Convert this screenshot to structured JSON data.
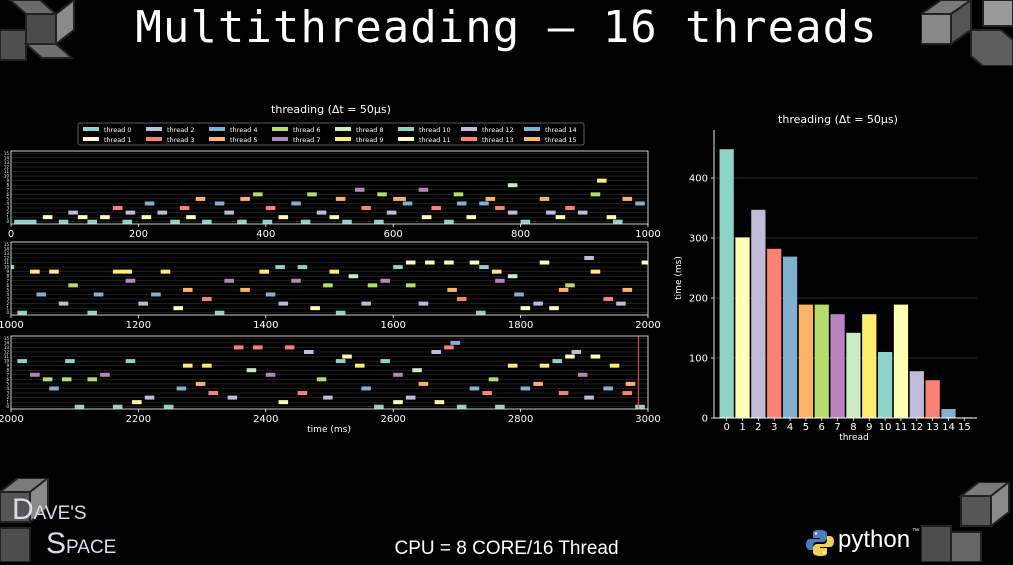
{
  "slide": {
    "title": "Multithreading – 16 threads",
    "footer": "CPU = 8 CORE/16 Thread",
    "logo_left": {
      "line1_big": "D",
      "line1_small": "AVE'S",
      "line2_big": "S",
      "line2_small": "PACE"
    },
    "logo_right": "python",
    "logo_right_mark": "™",
    "background": "#000000"
  },
  "chart_data": [
    {
      "type": "timeline",
      "title": "threading (Δt = 50μs)",
      "xlabel": "time (ms)",
      "panels": [
        {
          "xlim": [
            0,
            1000
          ],
          "xticks": [
            0,
            200,
            400,
            600,
            800,
            1000
          ]
        },
        {
          "xlim": [
            1000,
            2000
          ],
          "xticks": [
            1000,
            1200,
            1400,
            1600,
            1800,
            2000
          ]
        },
        {
          "xlim": [
            2000,
            3000
          ],
          "xticks": [
            2000,
            2200,
            2400,
            2600,
            2800,
            3000
          ],
          "marker_x": 2985
        }
      ],
      "ylim": [
        0,
        16
      ],
      "yticks": [
        0,
        1,
        2,
        3,
        4,
        5,
        6,
        7,
        8,
        9,
        10,
        11,
        12,
        13,
        14,
        15
      ],
      "legend": {
        "placement": "top",
        "entries": [
          "thread 0",
          "thread 1",
          "thread 2",
          "thread 3",
          "thread 4",
          "thread 5",
          "thread 6",
          "thread 7",
          "thread 8",
          "thread 9",
          "thread 10",
          "thread 11",
          "thread 12",
          "thread 13",
          "thread 14",
          "thread 15"
        ]
      },
      "segments": [
        [
          5,
          0,
          40
        ],
        [
          50,
          1,
          65
        ],
        [
          75,
          0,
          90
        ],
        [
          90,
          2,
          105
        ],
        [
          105,
          1,
          120
        ],
        [
          120,
          0,
          135
        ],
        [
          140,
          1,
          155
        ],
        [
          160,
          3,
          175
        ],
        [
          175,
          0,
          190
        ],
        [
          180,
          2,
          195
        ],
        [
          205,
          1,
          220
        ],
        [
          210,
          4,
          225
        ],
        [
          230,
          2,
          245
        ],
        [
          250,
          0,
          265
        ],
        [
          265,
          3,
          280
        ],
        [
          275,
          1,
          290
        ],
        [
          290,
          5,
          305
        ],
        [
          300,
          0,
          315
        ],
        [
          320,
          4,
          335
        ],
        [
          335,
          2,
          350
        ],
        [
          355,
          0,
          370
        ],
        [
          360,
          5,
          375
        ],
        [
          380,
          6,
          395
        ],
        [
          395,
          0,
          410
        ],
        [
          400,
          3,
          415
        ],
        [
          420,
          1,
          435
        ],
        [
          440,
          4,
          455
        ],
        [
          455,
          0,
          470
        ],
        [
          465,
          6,
          480
        ],
        [
          480,
          2,
          495
        ],
        [
          500,
          1,
          515
        ],
        [
          510,
          5,
          525
        ],
        [
          520,
          0,
          535
        ],
        [
          540,
          7,
          555
        ],
        [
          550,
          3,
          565
        ],
        [
          570,
          0,
          585
        ],
        [
          575,
          6,
          590
        ],
        [
          590,
          2,
          605
        ],
        [
          600,
          5,
          620
        ],
        [
          615,
          4,
          630
        ],
        [
          640,
          7,
          655
        ],
        [
          645,
          1,
          660
        ],
        [
          660,
          3,
          675
        ],
        [
          680,
          0,
          695
        ],
        [
          695,
          6,
          710
        ],
        [
          700,
          4,
          715
        ],
        [
          715,
          1,
          730
        ],
        [
          735,
          4,
          750
        ],
        [
          745,
          5,
          760
        ],
        [
          760,
          3,
          775
        ],
        [
          780,
          8,
          795
        ],
        [
          780,
          2,
          795
        ],
        [
          800,
          0,
          815
        ],
        [
          830,
          5,
          845
        ],
        [
          840,
          2,
          855
        ],
        [
          855,
          1,
          870
        ],
        [
          870,
          3,
          885
        ],
        [
          890,
          2,
          905
        ],
        [
          910,
          6,
          925
        ],
        [
          920,
          9,
          935
        ],
        [
          935,
          1,
          950
        ],
        [
          945,
          0,
          960
        ],
        [
          960,
          5,
          975
        ],
        [
          980,
          4,
          995
        ],
        [
          1000,
          10,
          1005
        ],
        [
          1010,
          0,
          1025
        ],
        [
          1030,
          9,
          1045
        ],
        [
          1040,
          4,
          1055
        ],
        [
          1060,
          9,
          1075
        ],
        [
          1075,
          2,
          1090
        ],
        [
          1090,
          6,
          1105
        ],
        [
          1120,
          0,
          1135
        ],
        [
          1130,
          4,
          1145
        ],
        [
          1160,
          9,
          1190
        ],
        [
          1180,
          7,
          1195
        ],
        [
          1200,
          2,
          1215
        ],
        [
          1220,
          4,
          1235
        ],
        [
          1235,
          9,
          1250
        ],
        [
          1255,
          1,
          1270
        ],
        [
          1270,
          5,
          1285
        ],
        [
          1300,
          3,
          1315
        ],
        [
          1320,
          0,
          1335
        ],
        [
          1335,
          7,
          1350
        ],
        [
          1360,
          5,
          1375
        ],
        [
          1390,
          9,
          1405
        ],
        [
          1400,
          4,
          1415
        ],
        [
          1415,
          10,
          1430
        ],
        [
          1420,
          2,
          1435
        ],
        [
          1440,
          7,
          1455
        ],
        [
          1450,
          10,
          1465
        ],
        [
          1470,
          1,
          1485
        ],
        [
          1490,
          6,
          1505
        ],
        [
          1500,
          9,
          1515
        ],
        [
          1510,
          0,
          1525
        ],
        [
          1530,
          8,
          1545
        ],
        [
          1550,
          2,
          1565
        ],
        [
          1560,
          6,
          1575
        ],
        [
          1580,
          7,
          1595
        ],
        [
          1600,
          10,
          1615
        ],
        [
          1620,
          6,
          1635
        ],
        [
          1620,
          11,
          1635
        ],
        [
          1640,
          2,
          1655
        ],
        [
          1650,
          11,
          1665
        ],
        [
          1680,
          11,
          1695
        ],
        [
          1685,
          5,
          1700
        ],
        [
          1700,
          3,
          1715
        ],
        [
          1720,
          11,
          1735
        ],
        [
          1730,
          0,
          1745
        ],
        [
          1735,
          10,
          1750
        ],
        [
          1755,
          9,
          1770
        ],
        [
          1760,
          7,
          1775
        ],
        [
          1780,
          8,
          1795
        ],
        [
          1790,
          4,
          1805
        ],
        [
          1800,
          1,
          1815
        ],
        [
          1820,
          2,
          1835
        ],
        [
          1830,
          11,
          1845
        ],
        [
          1845,
          1,
          1860
        ],
        [
          1860,
          5,
          1875
        ],
        [
          1870,
          6,
          1885
        ],
        [
          1900,
          12,
          1915
        ],
        [
          1910,
          9,
          1925
        ],
        [
          1930,
          3,
          1945
        ],
        [
          1950,
          2,
          1965
        ],
        [
          1960,
          5,
          1975
        ],
        [
          1990,
          11,
          2000
        ],
        [
          2010,
          10,
          2025
        ],
        [
          2030,
          7,
          2045
        ],
        [
          2050,
          6,
          2065
        ],
        [
          2060,
          4,
          2075
        ],
        [
          2080,
          6,
          2095
        ],
        [
          2085,
          10,
          2100
        ],
        [
          2100,
          0,
          2115
        ],
        [
          2120,
          6,
          2135
        ],
        [
          2140,
          7,
          2155
        ],
        [
          2160,
          0,
          2175
        ],
        [
          2180,
          10,
          2195
        ],
        [
          2190,
          1,
          2205
        ],
        [
          2210,
          2,
          2225
        ],
        [
          2240,
          0,
          2255
        ],
        [
          2260,
          4,
          2275
        ],
        [
          2270,
          9,
          2285
        ],
        [
          2290,
          5,
          2305
        ],
        [
          2300,
          9,
          2315
        ],
        [
          2310,
          3,
          2325
        ],
        [
          2340,
          2,
          2355
        ],
        [
          2350,
          13,
          2365
        ],
        [
          2370,
          8,
          2385
        ],
        [
          2380,
          13,
          2395
        ],
        [
          2400,
          7,
          2415
        ],
        [
          2420,
          1,
          2435
        ],
        [
          2430,
          13,
          2445
        ],
        [
          2450,
          3,
          2465
        ],
        [
          2460,
          12,
          2475
        ],
        [
          2480,
          6,
          2495
        ],
        [
          2490,
          2,
          2505
        ],
        [
          2510,
          10,
          2525
        ],
        [
          2520,
          11,
          2535
        ],
        [
          2540,
          9,
          2555
        ],
        [
          2550,
          4,
          2565
        ],
        [
          2570,
          0,
          2585
        ],
        [
          2580,
          10,
          2595
        ],
        [
          2600,
          7,
          2615
        ],
        [
          2600,
          1,
          2615
        ],
        [
          2620,
          2,
          2635
        ],
        [
          2630,
          8,
          2645
        ],
        [
          2640,
          5,
          2655
        ],
        [
          2660,
          12,
          2675
        ],
        [
          2665,
          1,
          2680
        ],
        [
          2680,
          13,
          2695
        ],
        [
          2690,
          14,
          2705
        ],
        [
          2700,
          0,
          2715
        ],
        [
          2720,
          4,
          2735
        ],
        [
          2740,
          3,
          2755
        ],
        [
          2750,
          6,
          2765
        ],
        [
          2760,
          0,
          2775
        ],
        [
          2780,
          9,
          2795
        ],
        [
          2800,
          4,
          2815
        ],
        [
          2820,
          5,
          2835
        ],
        [
          2830,
          9,
          2845
        ],
        [
          2850,
          10,
          2865
        ],
        [
          2860,
          3,
          2875
        ],
        [
          2870,
          11,
          2885
        ],
        [
          2880,
          12,
          2895
        ],
        [
          2890,
          7,
          2905
        ],
        [
          2900,
          2,
          2915
        ],
        [
          2910,
          11,
          2925
        ],
        [
          2930,
          4,
          2945
        ],
        [
          2940,
          9,
          2955
        ],
        [
          2960,
          3,
          2975
        ],
        [
          2965,
          5,
          2980
        ],
        [
          2980,
          0,
          2995
        ]
      ]
    },
    {
      "type": "bar",
      "title": "threading (Δt = 50μs)",
      "xlabel": "thread",
      "ylabel": "time (ms)",
      "categories": [
        "0",
        "1",
        "2",
        "3",
        "4",
        "5",
        "6",
        "7",
        "8",
        "9",
        "10",
        "11",
        "12",
        "13",
        "14",
        "15"
      ],
      "values": [
        448,
        301,
        347,
        282,
        269,
        189,
        189,
        173,
        142,
        173,
        110,
        189,
        78,
        63,
        15,
        1
      ],
      "ylim": [
        0,
        480
      ],
      "yticks": [
        0,
        100,
        200,
        300,
        400
      ],
      "grid": "horizontal"
    }
  ],
  "colors": {
    "thread_palette": [
      "#8dd3c7",
      "#feffb3",
      "#bfbbd9",
      "#fa8174",
      "#81b1d2",
      "#fdb462",
      "#b3de69",
      "#bc82bd",
      "#ccebc4",
      "#ffed6f",
      "#8dd3c7",
      "#feffb3",
      "#bfbbd9",
      "#fa8174",
      "#81b1d2",
      "#fdb462"
    ],
    "axes_edge": "#ffffff",
    "grid": "#3a3a3a",
    "marker": "#e8423a"
  }
}
